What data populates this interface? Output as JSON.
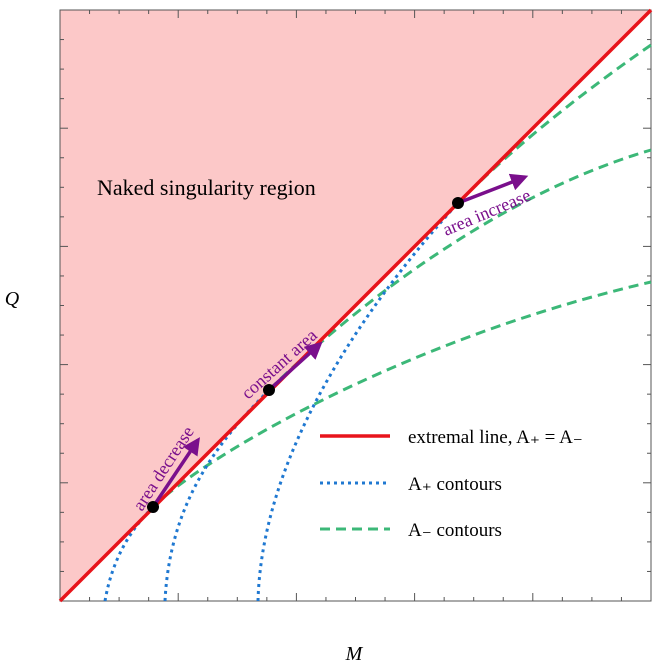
{
  "axes": {
    "x_label": "M",
    "y_label": "Q"
  },
  "region_label": "Naked singularity region",
  "annotations": [
    "area decrease",
    "constant area",
    "area increase"
  ],
  "legend": [
    "extremal line, A₊ = A₋",
    "A₊ contours",
    "A₋ contours"
  ]
}
